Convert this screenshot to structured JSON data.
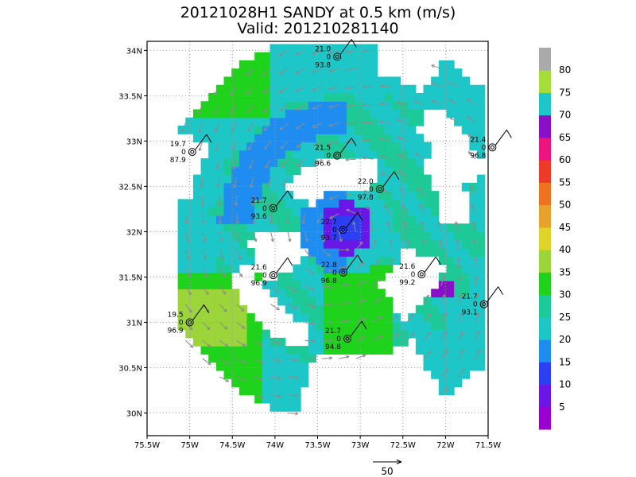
{
  "title": {
    "line1": "20121028H1 SANDY at 0.5 km (m/s)",
    "line2": "Valid: 201210281140"
  },
  "map": {
    "lon_range": [
      -75.5,
      -71.5
    ],
    "lat_range": [
      29.75,
      34.1
    ],
    "x_ticks": [
      "75.5W",
      "75W",
      "74.5W",
      "74W",
      "73.5W",
      "73W",
      "72.5W",
      "72W",
      "71.5W"
    ],
    "y_ticks": [
      "34N",
      "33.5N",
      "33N",
      "32.5N",
      "32N",
      "31.5N",
      "31N",
      "30.5N",
      "30N"
    ],
    "grid": true,
    "storm_center": {
      "lon": -73.2,
      "lat": 32.0
    }
  },
  "colorbar": {
    "labels": [
      "5",
      "10",
      "15",
      "20",
      "25",
      "30",
      "35",
      "40",
      "45",
      "50",
      "55",
      "60",
      "65",
      "70",
      "75",
      "80"
    ],
    "colors": [
      "#9a00cf",
      "#6a16e6",
      "#2c3ff2",
      "#1f8cf0",
      "#1ec7c7",
      "#1dc996",
      "#1fd31c",
      "#9bd53a",
      "#e0d42a",
      "#e6a22d",
      "#ee7320",
      "#ef3a2a",
      "#ee1480",
      "#8a0fc9",
      "#1ec7c7",
      "#a5de38",
      "#aaaaaa"
    ]
  },
  "reference_vector": {
    "label": "50"
  },
  "stations": [
    {
      "v": "21.0",
      "z": "0",
      "p": "93.8",
      "lon": -73.27,
      "lat": 33.93
    },
    {
      "v": "19.7",
      "z": "0",
      "p": "87.9",
      "lon": -74.97,
      "lat": 32.88
    },
    {
      "v": "21.5",
      "z": "0",
      "p": "96.6",
      "lon": -73.27,
      "lat": 32.84
    },
    {
      "v": "21.4",
      "z": "0",
      "p": "96.8",
      "lon": -71.45,
      "lat": 32.93
    },
    {
      "v": "21.7",
      "z": "0",
      "p": "93.6",
      "lon": -74.02,
      "lat": 32.26
    },
    {
      "v": "22.0",
      "z": "0",
      "p": "97.8",
      "lon": -72.77,
      "lat": 32.47
    },
    {
      "v": "22.7",
      "z": "0",
      "p": "93.7",
      "lon": -73.2,
      "lat": 32.02
    },
    {
      "v": "21.6",
      "z": "0",
      "p": "96.9",
      "lon": -74.02,
      "lat": 31.52
    },
    {
      "v": "22.8",
      "z": "0",
      "p": "96.8",
      "lon": -73.2,
      "lat": 31.55
    },
    {
      "v": "21.6",
      "z": "0",
      "p": "99.2",
      "lon": -72.28,
      "lat": 31.53
    },
    {
      "v": "19.5",
      "z": "0",
      "p": "96.9",
      "lon": -75.0,
      "lat": 31.0
    },
    {
      "v": "21.7",
      "z": "0",
      "p": "93.1",
      "lon": -71.55,
      "lat": 31.2
    },
    {
      "v": "21.7",
      "z": "0",
      "p": "94.8",
      "lon": -73.15,
      "lat": 30.82
    }
  ]
}
